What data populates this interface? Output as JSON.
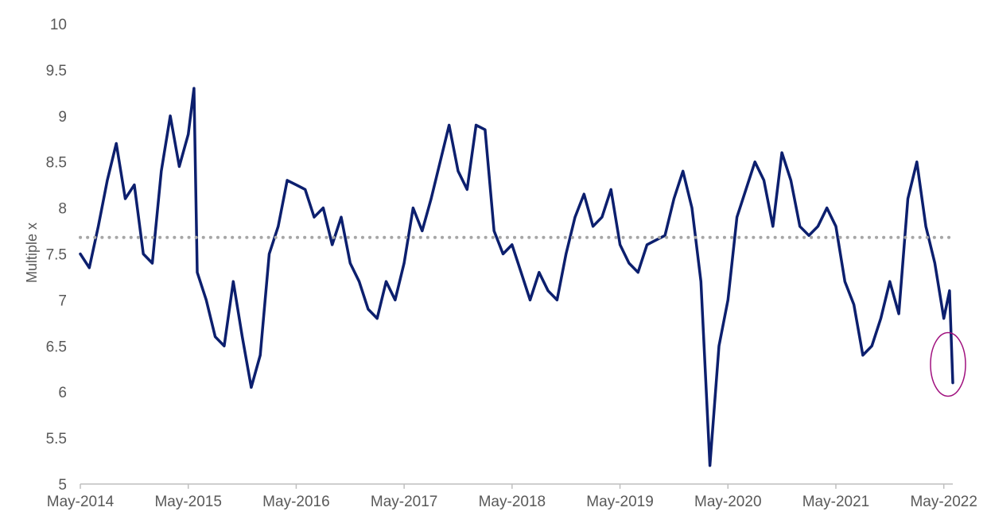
{
  "chart_data": {
    "type": "line",
    "title": "",
    "xlabel": "",
    "ylabel": "Multiple x",
    "ylim": [
      5,
      10
    ],
    "yticks": [
      "5",
      "5.5",
      "6",
      "6.5",
      "7",
      "7.5",
      "8",
      "8.5",
      "9",
      "9.5",
      "10"
    ],
    "xlim": [
      "2014-05",
      "2022-06"
    ],
    "xticks": [
      {
        "label": "May-2014",
        "date": "2014-05"
      },
      {
        "label": "May-2015",
        "date": "2015-05"
      },
      {
        "label": "May-2016",
        "date": "2016-05"
      },
      {
        "label": "May-2017",
        "date": "2017-05"
      },
      {
        "label": "May-2018",
        "date": "2018-05"
      },
      {
        "label": "May-2019",
        "date": "2019-05"
      },
      {
        "label": "May-2020",
        "date": "2020-05"
      },
      {
        "label": "May-2021",
        "date": "2021-05"
      },
      {
        "label": "May-2022",
        "date": "2022-05"
      }
    ],
    "grid": false,
    "legend": "none",
    "series": [
      {
        "color": "#0c1f6e",
        "style": "solid",
        "points": [
          [
            "2014-05",
            7.5
          ],
          [
            "2014-06",
            7.35
          ],
          [
            "2014-07",
            7.8
          ],
          [
            "2014-08",
            8.3
          ],
          [
            "2014-09",
            8.7
          ],
          [
            "2014-10",
            8.1
          ],
          [
            "2014-11",
            8.25
          ],
          [
            "2014-12",
            7.5
          ],
          [
            "2015-01",
            7.4
          ],
          [
            "2015-02",
            8.4
          ],
          [
            "2015-03",
            9.0
          ],
          [
            "2015-04",
            8.45
          ],
          [
            "2015-05",
            8.8
          ],
          [
            "2015-05-20",
            9.3
          ],
          [
            "2015-06",
            7.3
          ],
          [
            "2015-07",
            7.0
          ],
          [
            "2015-08",
            6.6
          ],
          [
            "2015-09",
            6.5
          ],
          [
            "2015-10",
            7.2
          ],
          [
            "2015-11",
            6.6
          ],
          [
            "2015-12",
            6.05
          ],
          [
            "2016-01",
            6.4
          ],
          [
            "2016-02",
            7.5
          ],
          [
            "2016-03",
            7.8
          ],
          [
            "2016-04",
            8.3
          ],
          [
            "2016-05",
            8.25
          ],
          [
            "2016-06",
            8.2
          ],
          [
            "2016-07",
            7.9
          ],
          [
            "2016-08",
            8.0
          ],
          [
            "2016-09",
            7.6
          ],
          [
            "2016-10",
            7.9
          ],
          [
            "2016-11",
            7.4
          ],
          [
            "2016-12",
            7.2
          ],
          [
            "2017-01",
            6.9
          ],
          [
            "2017-02",
            6.8
          ],
          [
            "2017-03",
            7.2
          ],
          [
            "2017-04",
            7.0
          ],
          [
            "2017-05",
            7.4
          ],
          [
            "2017-06",
            8.0
          ],
          [
            "2017-07",
            7.75
          ],
          [
            "2017-08",
            8.1
          ],
          [
            "2017-09",
            8.5
          ],
          [
            "2017-10",
            8.9
          ],
          [
            "2017-11",
            8.4
          ],
          [
            "2017-12",
            8.2
          ],
          [
            "2018-01",
            8.9
          ],
          [
            "2018-02",
            8.85
          ],
          [
            "2018-03",
            7.75
          ],
          [
            "2018-04",
            7.5
          ],
          [
            "2018-05",
            7.6
          ],
          [
            "2018-06",
            7.3
          ],
          [
            "2018-07",
            7.0
          ],
          [
            "2018-08",
            7.3
          ],
          [
            "2018-09",
            7.1
          ],
          [
            "2018-10",
            7.0
          ],
          [
            "2018-11",
            7.5
          ],
          [
            "2018-12",
            7.9
          ],
          [
            "2019-01",
            8.15
          ],
          [
            "2019-02",
            7.8
          ],
          [
            "2019-03",
            7.9
          ],
          [
            "2019-04",
            8.2
          ],
          [
            "2019-05",
            7.6
          ],
          [
            "2019-06",
            7.4
          ],
          [
            "2019-07",
            7.3
          ],
          [
            "2019-08",
            7.6
          ],
          [
            "2019-09",
            7.65
          ],
          [
            "2019-10",
            7.7
          ],
          [
            "2019-11",
            8.1
          ],
          [
            "2019-12",
            8.4
          ],
          [
            "2020-01",
            8.0
          ],
          [
            "2020-02",
            7.2
          ],
          [
            "2020-03",
            5.2
          ],
          [
            "2020-04",
            6.5
          ],
          [
            "2020-05",
            7.0
          ],
          [
            "2020-06",
            7.9
          ],
          [
            "2020-07",
            8.2
          ],
          [
            "2020-08",
            8.5
          ],
          [
            "2020-09",
            8.3
          ],
          [
            "2020-10",
            7.8
          ],
          [
            "2020-11",
            8.6
          ],
          [
            "2020-12",
            8.3
          ],
          [
            "2021-01",
            7.8
          ],
          [
            "2021-02",
            7.7
          ],
          [
            "2021-03",
            7.8
          ],
          [
            "2021-04",
            8.0
          ],
          [
            "2021-05",
            7.8
          ],
          [
            "2021-06",
            7.2
          ],
          [
            "2021-07",
            6.95
          ],
          [
            "2021-08",
            6.4
          ],
          [
            "2021-09",
            6.5
          ],
          [
            "2021-10",
            6.8
          ],
          [
            "2021-11",
            7.2
          ],
          [
            "2021-12",
            6.85
          ],
          [
            "2022-01",
            8.1
          ],
          [
            "2022-02",
            8.5
          ],
          [
            "2022-03",
            7.8
          ],
          [
            "2022-04",
            7.4
          ],
          [
            "2022-05",
            6.8
          ],
          [
            "2022-05-20",
            7.1
          ],
          [
            "2022-06",
            6.1
          ]
        ]
      },
      {
        "color": "#a6a6a6",
        "style": "dotted",
        "points": [
          [
            "2014-05",
            7.68
          ],
          [
            "2022-06",
            7.68
          ]
        ]
      }
    ],
    "annotations": [
      {
        "shape": "circle",
        "color": "#a0107e",
        "date": "2022-06",
        "y": 6.3
      }
    ]
  }
}
